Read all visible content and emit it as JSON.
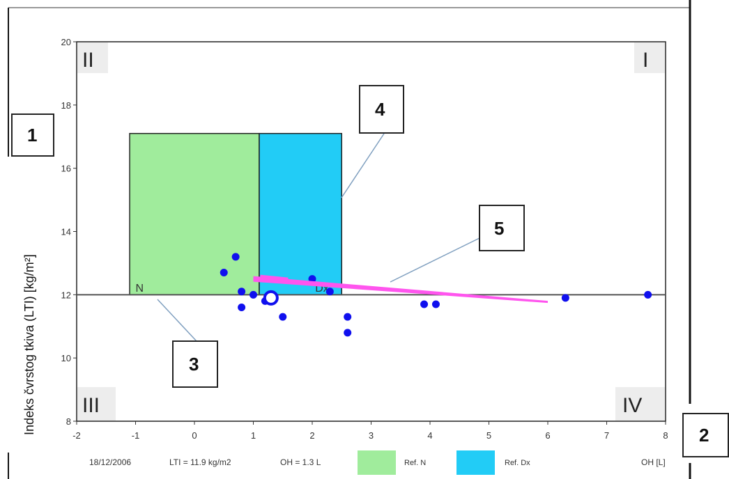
{
  "chart_data": {
    "type": "scatter",
    "title": "",
    "xlabel": "OH [L]",
    "ylabel": "Indeks čvrstog tkiva (LTI) [kg/m²]",
    "xlim": [
      -2,
      8
    ],
    "ylim": [
      8,
      20
    ],
    "x_ticks": [
      "-2",
      "-1",
      "0",
      "1",
      "2",
      "3",
      "4",
      "5",
      "6",
      "7",
      "8"
    ],
    "y_ticks": [
      "8",
      "10",
      "12",
      "14",
      "16",
      "18",
      "20"
    ],
    "quadrant_labels": [
      "II",
      "I",
      "III",
      "IV"
    ],
    "reference_line": {
      "y": 12
    },
    "marker_labels": {
      "normal": "N",
      "dx": "Dx"
    },
    "ref_regions": [
      {
        "name": "Ref. N",
        "x": [
          -1.1,
          1.1
        ],
        "y": [
          12,
          17.1
        ],
        "color": "#a0ec9c"
      },
      {
        "name": "Ref. Dx",
        "x": [
          1.1,
          2.5
        ],
        "y": [
          12,
          17.1
        ],
        "color": "#22ccf6"
      }
    ],
    "points": [
      {
        "x": 0.5,
        "y": 12.7
      },
      {
        "x": 0.7,
        "y": 13.2
      },
      {
        "x": 0.8,
        "y": 12.1
      },
      {
        "x": 0.8,
        "y": 11.6
      },
      {
        "x": 1.0,
        "y": 12.0
      },
      {
        "x": 1.2,
        "y": 11.8
      },
      {
        "x": 1.5,
        "y": 11.3
      },
      {
        "x": 2.0,
        "y": 12.5
      },
      {
        "x": 2.3,
        "y": 12.1
      },
      {
        "x": 2.6,
        "y": 11.3
      },
      {
        "x": 2.6,
        "y": 10.8
      },
      {
        "x": 3.9,
        "y": 11.7
      },
      {
        "x": 4.1,
        "y": 11.7
      },
      {
        "x": 6.3,
        "y": 11.9
      },
      {
        "x": 7.7,
        "y": 12.0
      }
    ],
    "current_point": {
      "x": 1.3,
      "y": 11.9
    },
    "trend": {
      "from": {
        "x": 1.0,
        "y": 12.5
      },
      "to": {
        "x": 6.0,
        "y": 11.85
      },
      "color": "#ff55ee"
    },
    "legend": {
      "items": [
        "Ref. N",
        "Ref. Dx"
      ],
      "placement": "bottom"
    },
    "footer": {
      "date": "18/12/2006",
      "lti": "LTI = 11.9 kg/m2",
      "oh": "OH = 1.3 L"
    },
    "grid": false
  },
  "callouts": [
    "1",
    "2",
    "3",
    "4",
    "5"
  ]
}
